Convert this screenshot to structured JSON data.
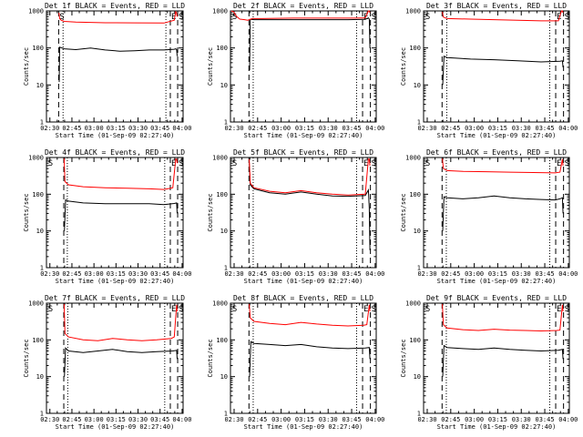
{
  "figure": {
    "ylabel": "Counts/sec",
    "xlabel": "Start Time (01-Sep-09 02:27:40)",
    "xticks": [
      "02:30",
      "02:45",
      "03:00",
      "03:15",
      "03:30",
      "03:45",
      "04:00"
    ],
    "yticks": [
      "1",
      "10",
      "100",
      "1000"
    ],
    "colors": {
      "events": "#000000",
      "lld": "#ff0000"
    }
  },
  "chart_data": [
    {
      "type": "line",
      "title": "Det 1f BLACK = Events, RED = LLD",
      "ylabel": "Counts/sec",
      "xlabel": "Start Time (01-Sep-09 02:27:40)",
      "xlim": [
        0,
        93
      ],
      "ylim": [
        1,
        1000
      ],
      "yscale": "log",
      "markers": [
        {
          "label": "S",
          "x": 8.3
        },
        {
          "label": "E",
          "x": 84.3
        },
        {
          "label": "S",
          "x": 89.3
        }
      ],
      "dashed_x": [
        8.3,
        84.3,
        89.3
      ],
      "dotted_x": [
        11.3,
        81.3
      ],
      "series": [
        {
          "color": "#000000",
          "x": [
            8.7,
            9,
            12,
            20,
            30,
            40,
            50,
            60,
            70,
            80,
            87,
            88,
            88.6,
            89
          ],
          "y": [
            12,
            105,
            95,
            90,
            100,
            88,
            82,
            84,
            88,
            88,
            92,
            95,
            90,
            60
          ]
        },
        {
          "color": "#ff0000",
          "x": [
            8.5,
            9,
            10,
            12,
            20,
            40,
            60,
            80,
            87,
            88,
            88.5,
            89
          ],
          "y": [
            900,
            620,
            560,
            520,
            500,
            480,
            475,
            470,
            560,
            950,
            900,
            700
          ]
        }
      ]
    },
    {
      "type": "line",
      "title": "Det 2f BLACK = Events, RED = LLD",
      "ylabel": "Counts/sec",
      "xlabel": "Start Time (01-Sep-09 02:27:40)",
      "xlim": [
        0,
        93
      ],
      "ylim": [
        1,
        1000
      ],
      "yscale": "log",
      "markers": [
        {
          "label": "S",
          "x": 0.5
        },
        {
          "label": "E",
          "x": 84.3
        },
        {
          "label": "S",
          "x": 89.3
        }
      ],
      "dashed_x": [
        11.8,
        84.3,
        89.3
      ],
      "dotted_x": [
        14.5,
        80.5
      ],
      "series": [
        {
          "color": "#000000",
          "x": [
            12.2,
            12.6,
            15,
            30,
            45,
            60,
            75,
            86,
            88,
            88.6,
            89
          ],
          "y": [
            25,
            590,
            580,
            580,
            580,
            580,
            580,
            590,
            650,
            600,
            100
          ]
        },
        {
          "color": "#ff0000",
          "x": [
            0.5,
            2,
            4,
            6,
            9,
            11,
            14,
            20,
            40,
            60,
            80,
            86,
            88,
            88.5,
            89
          ],
          "y": [
            1000,
            950,
            700,
            600,
            580,
            560,
            620,
            620,
            640,
            640,
            640,
            650,
            1000,
            1000,
            900
          ]
        }
      ]
    },
    {
      "type": "line",
      "title": "Det 3f BLACK = Events, RED = LLD",
      "ylabel": "Counts/sec",
      "xlabel": "Start Time (01-Sep-09 02:27:40)",
      "xlim": [
        0,
        93
      ],
      "ylim": [
        1,
        1000
      ],
      "yscale": "log",
      "markers": [
        {
          "label": "S",
          "x": 0.5
        },
        {
          "label": "E",
          "x": 84.3
        },
        {
          "label": "S",
          "x": 89.3
        }
      ],
      "dashed_x": [
        11.8,
        84.3,
        89.3
      ],
      "dotted_x": [
        14.8,
        80.5
      ],
      "series": [
        {
          "color": "#000000",
          "x": [
            12.2,
            13,
            15,
            30,
            45,
            60,
            75,
            87,
            88.6,
            89
          ],
          "y": [
            10,
            60,
            55,
            50,
            48,
            45,
            42,
            44,
            45,
            30
          ]
        },
        {
          "color": "#ff0000",
          "x": [
            12,
            12.6,
            15,
            30,
            45,
            60,
            75,
            86,
            88,
            88.6,
            89
          ],
          "y": [
            950,
            680,
            620,
            600,
            580,
            560,
            540,
            540,
            1000,
            1000,
            900
          ]
        }
      ]
    },
    {
      "type": "line",
      "title": "Det 4f BLACK = Events, RED = LLD",
      "ylabel": "Counts/sec",
      "xlabel": "Start Time (01-Sep-09 02:27:40)",
      "xlim": [
        0,
        93
      ],
      "ylim": [
        1,
        1000
      ],
      "yscale": "log",
      "markers": [
        {
          "label": "S",
          "x": 0.5
        },
        {
          "label": "E",
          "x": 84.3
        },
        {
          "label": "S",
          "x": 89.3
        }
      ],
      "dashed_x": [
        11.8,
        84.3,
        89.3
      ],
      "dotted_x": [
        14.2,
        80.5
      ],
      "series": [
        {
          "color": "#000000",
          "x": [
            12.2,
            13,
            15,
            25,
            40,
            55,
            70,
            80,
            87,
            88.6,
            89
          ],
          "y": [
            10,
            70,
            65,
            58,
            55,
            55,
            55,
            52,
            56,
            58,
            30
          ]
        },
        {
          "color": "#ff0000",
          "x": [
            12,
            12.6,
            15,
            25,
            40,
            55,
            70,
            80,
            86,
            88,
            88.6,
            89
          ],
          "y": [
            950,
            220,
            180,
            160,
            150,
            145,
            140,
            135,
            150,
            900,
            900,
            700
          ]
        }
      ]
    },
    {
      "type": "line",
      "title": "Det 5f BLACK = Events, RED = LLD",
      "ylabel": "Counts/sec",
      "xlabel": "Start Time (01-Sep-09 02:27:40)",
      "xlim": [
        0,
        93
      ],
      "ylim": [
        1,
        1000
      ],
      "yscale": "log",
      "markers": [
        {
          "label": "S",
          "x": 0.5
        },
        {
          "label": "E",
          "x": 84.3
        },
        {
          "label": "S",
          "x": 89.3
        }
      ],
      "dashed_x": [
        11.8,
        84.3,
        89.3
      ],
      "dotted_x": [
        14.5,
        80.5
      ],
      "series": [
        {
          "color": "#000000",
          "x": [
            12,
            12.6,
            15,
            25,
            35,
            45,
            55,
            65,
            75,
            86,
            88,
            88.6,
            89
          ],
          "y": [
            700,
            180,
            140,
            110,
            100,
            115,
            100,
            90,
            88,
            92,
            130,
            40,
            3
          ]
        },
        {
          "color": "#ff0000",
          "x": [
            12,
            12.6,
            15,
            25,
            35,
            45,
            55,
            65,
            75,
            86,
            88,
            88.6,
            89
          ],
          "y": [
            900,
            200,
            150,
            120,
            110,
            125,
            110,
            100,
            95,
            100,
            900,
            900,
            600
          ]
        }
      ]
    },
    {
      "type": "line",
      "title": "Det 6f BLACK = Events, RED = LLD",
      "ylabel": "Counts/sec",
      "xlabel": "Start Time (01-Sep-09 02:27:40)",
      "xlim": [
        0,
        93
      ],
      "ylim": [
        1,
        1000
      ],
      "yscale": "log",
      "markers": [
        {
          "label": "S",
          "x": 0.5
        },
        {
          "label": "E",
          "x": 84.3
        },
        {
          "label": "S",
          "x": 89.3
        }
      ],
      "dashed_x": [
        11.8,
        84.3,
        89.3
      ],
      "dotted_x": [
        14.5,
        80.5
      ],
      "series": [
        {
          "color": "#000000",
          "x": [
            12.2,
            13,
            15,
            25,
            35,
            45,
            55,
            65,
            75,
            84,
            87,
            88.6,
            89
          ],
          "y": [
            10,
            85,
            80,
            75,
            80,
            90,
            80,
            75,
            72,
            70,
            75,
            80,
            30
          ]
        },
        {
          "color": "#ff0000",
          "x": [
            12,
            12.6,
            15,
            25,
            40,
            55,
            70,
            84,
            87,
            88.6,
            89
          ],
          "y": [
            950,
            500,
            440,
            420,
            410,
            400,
            390,
            380,
            400,
            900,
            600
          ]
        }
      ]
    },
    {
      "type": "line",
      "title": "Det 7f BLACK = Events, RED = LLD",
      "ylabel": "Counts/sec",
      "xlabel": "Start Time (01-Sep-09 02:27:40)",
      "xlim": [
        0,
        93
      ],
      "ylim": [
        1,
        1000
      ],
      "yscale": "log",
      "markers": [
        {
          "label": "S",
          "x": 0.5
        },
        {
          "label": "E",
          "x": 84.3
        },
        {
          "label": "S",
          "x": 89.3
        }
      ],
      "dashed_x": [
        11.8,
        84.3,
        89.3
      ],
      "dotted_x": [
        14.5,
        80.5
      ],
      "series": [
        {
          "color": "#000000",
          "x": [
            12.2,
            13,
            15,
            25,
            35,
            45,
            55,
            65,
            75,
            86,
            88.6,
            89
          ],
          "y": [
            10,
            60,
            50,
            45,
            50,
            55,
            48,
            45,
            48,
            50,
            52,
            30
          ]
        },
        {
          "color": "#ff0000",
          "x": [
            12,
            12.6,
            15,
            25,
            35,
            45,
            55,
            65,
            75,
            85,
            87,
            88.6,
            89
          ],
          "y": [
            950,
            150,
            120,
            100,
            95,
            110,
            100,
            95,
            100,
            110,
            120,
            900,
            600
          ]
        }
      ]
    },
    {
      "type": "line",
      "title": "Det 8f BLACK = Events, RED = LLD",
      "ylabel": "Counts/sec",
      "xlabel": "Start Time (01-Sep-09 02:27:40)",
      "xlim": [
        0,
        93
      ],
      "ylim": [
        1,
        1000
      ],
      "yscale": "log",
      "markers": [
        {
          "label": "S",
          "x": 0.5
        },
        {
          "label": "E",
          "x": 84.3
        },
        {
          "label": "S",
          "x": 89.3
        }
      ],
      "dashed_x": [
        11.8,
        84.3,
        89.3
      ],
      "dotted_x": [
        14.5,
        80.5
      ],
      "series": [
        {
          "color": "#000000",
          "x": [
            12.2,
            13,
            15,
            25,
            35,
            45,
            55,
            65,
            75,
            86,
            88.6,
            89
          ],
          "y": [
            10,
            90,
            80,
            75,
            70,
            75,
            65,
            60,
            58,
            60,
            62,
            30
          ]
        },
        {
          "color": "#ff0000",
          "x": [
            12,
            12.6,
            15,
            25,
            35,
            45,
            55,
            65,
            75,
            85,
            87,
            88.6,
            89
          ],
          "y": [
            950,
            400,
            320,
            280,
            260,
            300,
            270,
            250,
            240,
            250,
            260,
            900,
            600
          ]
        }
      ]
    },
    {
      "type": "line",
      "title": "Det 9f BLACK = Events, RED = LLD",
      "ylabel": "Counts/sec",
      "xlabel": "Start Time (01-Sep-09 02:27:40)",
      "xlim": [
        0,
        93
      ],
      "ylim": [
        1,
        1000
      ],
      "yscale": "log",
      "markers": [
        {
          "label": "S",
          "x": 0.5
        },
        {
          "label": "E",
          "x": 84.3
        },
        {
          "label": "S",
          "x": 89.3
        }
      ],
      "dashed_x": [
        11.8,
        84.3,
        89.3
      ],
      "dotted_x": [
        14.5,
        80.5
      ],
      "series": [
        {
          "color": "#000000",
          "x": [
            12.2,
            13,
            15,
            25,
            35,
            45,
            55,
            65,
            75,
            86,
            88.6,
            89
          ],
          "y": [
            10,
            70,
            62,
            58,
            55,
            60,
            55,
            52,
            50,
            52,
            55,
            30
          ]
        },
        {
          "color": "#ff0000",
          "x": [
            12,
            12.6,
            15,
            25,
            35,
            45,
            55,
            65,
            75,
            85,
            87,
            88.6,
            89
          ],
          "y": [
            950,
            260,
            210,
            190,
            180,
            195,
            185,
            180,
            175,
            180,
            185,
            900,
            600
          ]
        }
      ]
    }
  ]
}
